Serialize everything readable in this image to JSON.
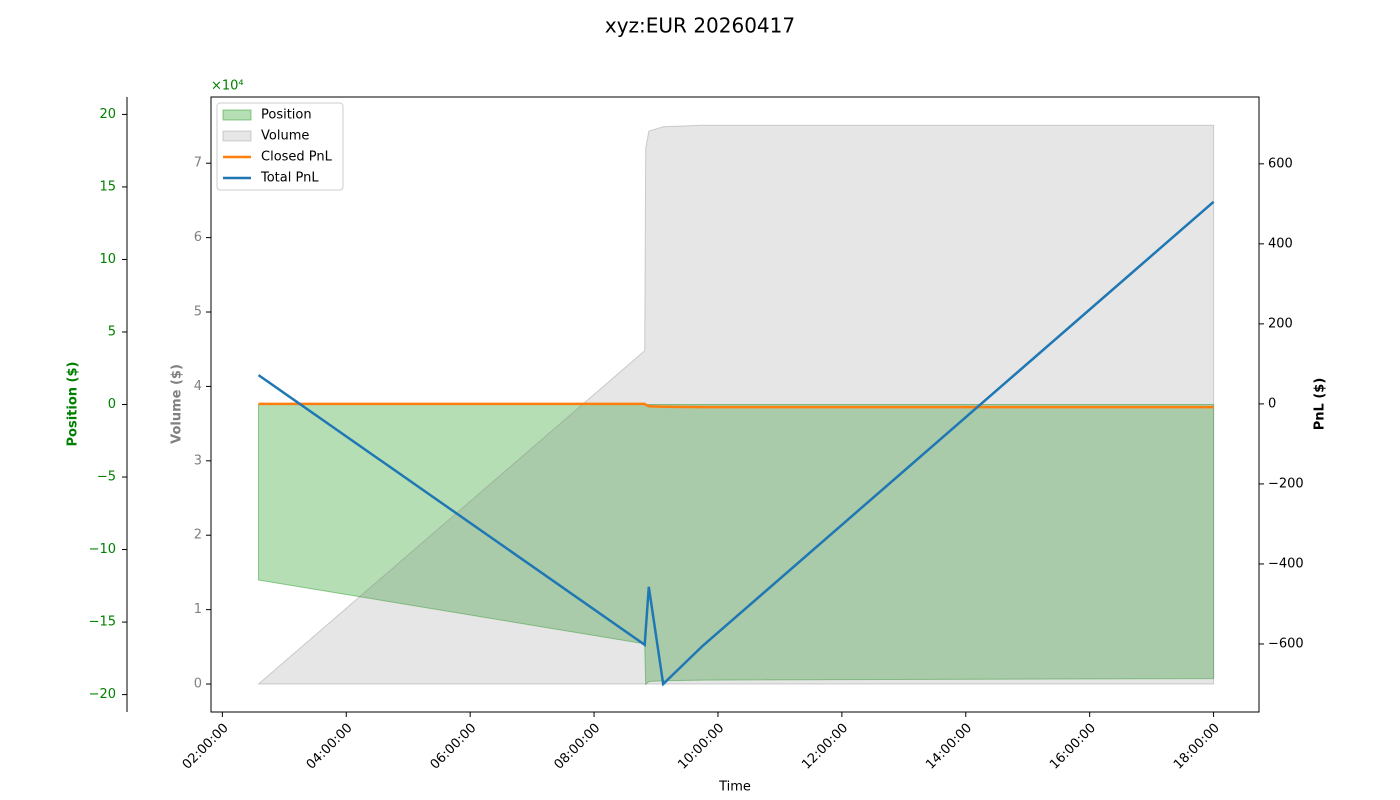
{
  "chart_data": {
    "type": "line",
    "title": "xyz:EUR 20260417",
    "x_label": "Time",
    "y_label": "Volume ($)",
    "y2_label": "PnL ($)",
    "y3_label": "Position ($)",
    "y_offset_label": "×10⁴",
    "x": [
      "02:35:00",
      "08:49:00",
      "08:50:00",
      "08:53:00",
      "09:07:00",
      "09:45:00",
      "18:00:00"
    ],
    "xlim": [
      "01:49:00",
      "18:44:00"
    ],
    "xticks": [
      "02:00:00",
      "04:00:00",
      "06:00:00",
      "08:00:00",
      "10:00:00",
      "12:00:00",
      "14:00:00",
      "16:00:00",
      "18:00:00"
    ],
    "ylim": [
      -0.376,
      7.89
    ],
    "yticks": [
      0,
      1,
      2,
      3,
      4,
      5,
      6,
      7
    ],
    "y2lim": [
      -770,
      767
    ],
    "y2ticks": [
      {
        "value": -600,
        "label": "−600"
      },
      {
        "value": -400,
        "label": "−400"
      },
      {
        "value": -200,
        "label": "−200"
      },
      0,
      200,
      400,
      600
    ],
    "y3lim": [
      -21.2,
      21.2
    ],
    "y3ticks": [
      {
        "value": -20,
        "label": "−20"
      },
      {
        "value": -15,
        "label": "−15"
      },
      {
        "value": -10,
        "label": "−10"
      },
      {
        "value": -5,
        "label": "−5"
      },
      0,
      5,
      10,
      15,
      20
    ],
    "legend": "upper left",
    "series": [
      {
        "name": "Position",
        "mark": "area",
        "axis": "y3",
        "color": "#2ca02c",
        "alpha": 0.35,
        "values": [
          -12.1,
          -16.5,
          -19.3,
          -19.1,
          -19.05,
          -19.0,
          -18.9
        ]
      },
      {
        "name": "Volume",
        "mark": "area",
        "axis": "y",
        "color": "#808080",
        "alpha": 0.2,
        "values": [
          0,
          4.48,
          7.2,
          7.43,
          7.49,
          7.51,
          7.51
        ]
      },
      {
        "name": "Closed PnL",
        "mark": "line",
        "axis": "y2",
        "color": "#ff7f0e",
        "values": [
          0,
          0,
          -2,
          -6,
          -7,
          -8,
          -8
        ]
      },
      {
        "name": "Total PnL",
        "mark": "line",
        "axis": "y2",
        "color": "#1f77b4",
        "values": [
          72,
          -602,
          -566,
          -457,
          -700,
          -605,
          505
        ]
      }
    ]
  }
}
